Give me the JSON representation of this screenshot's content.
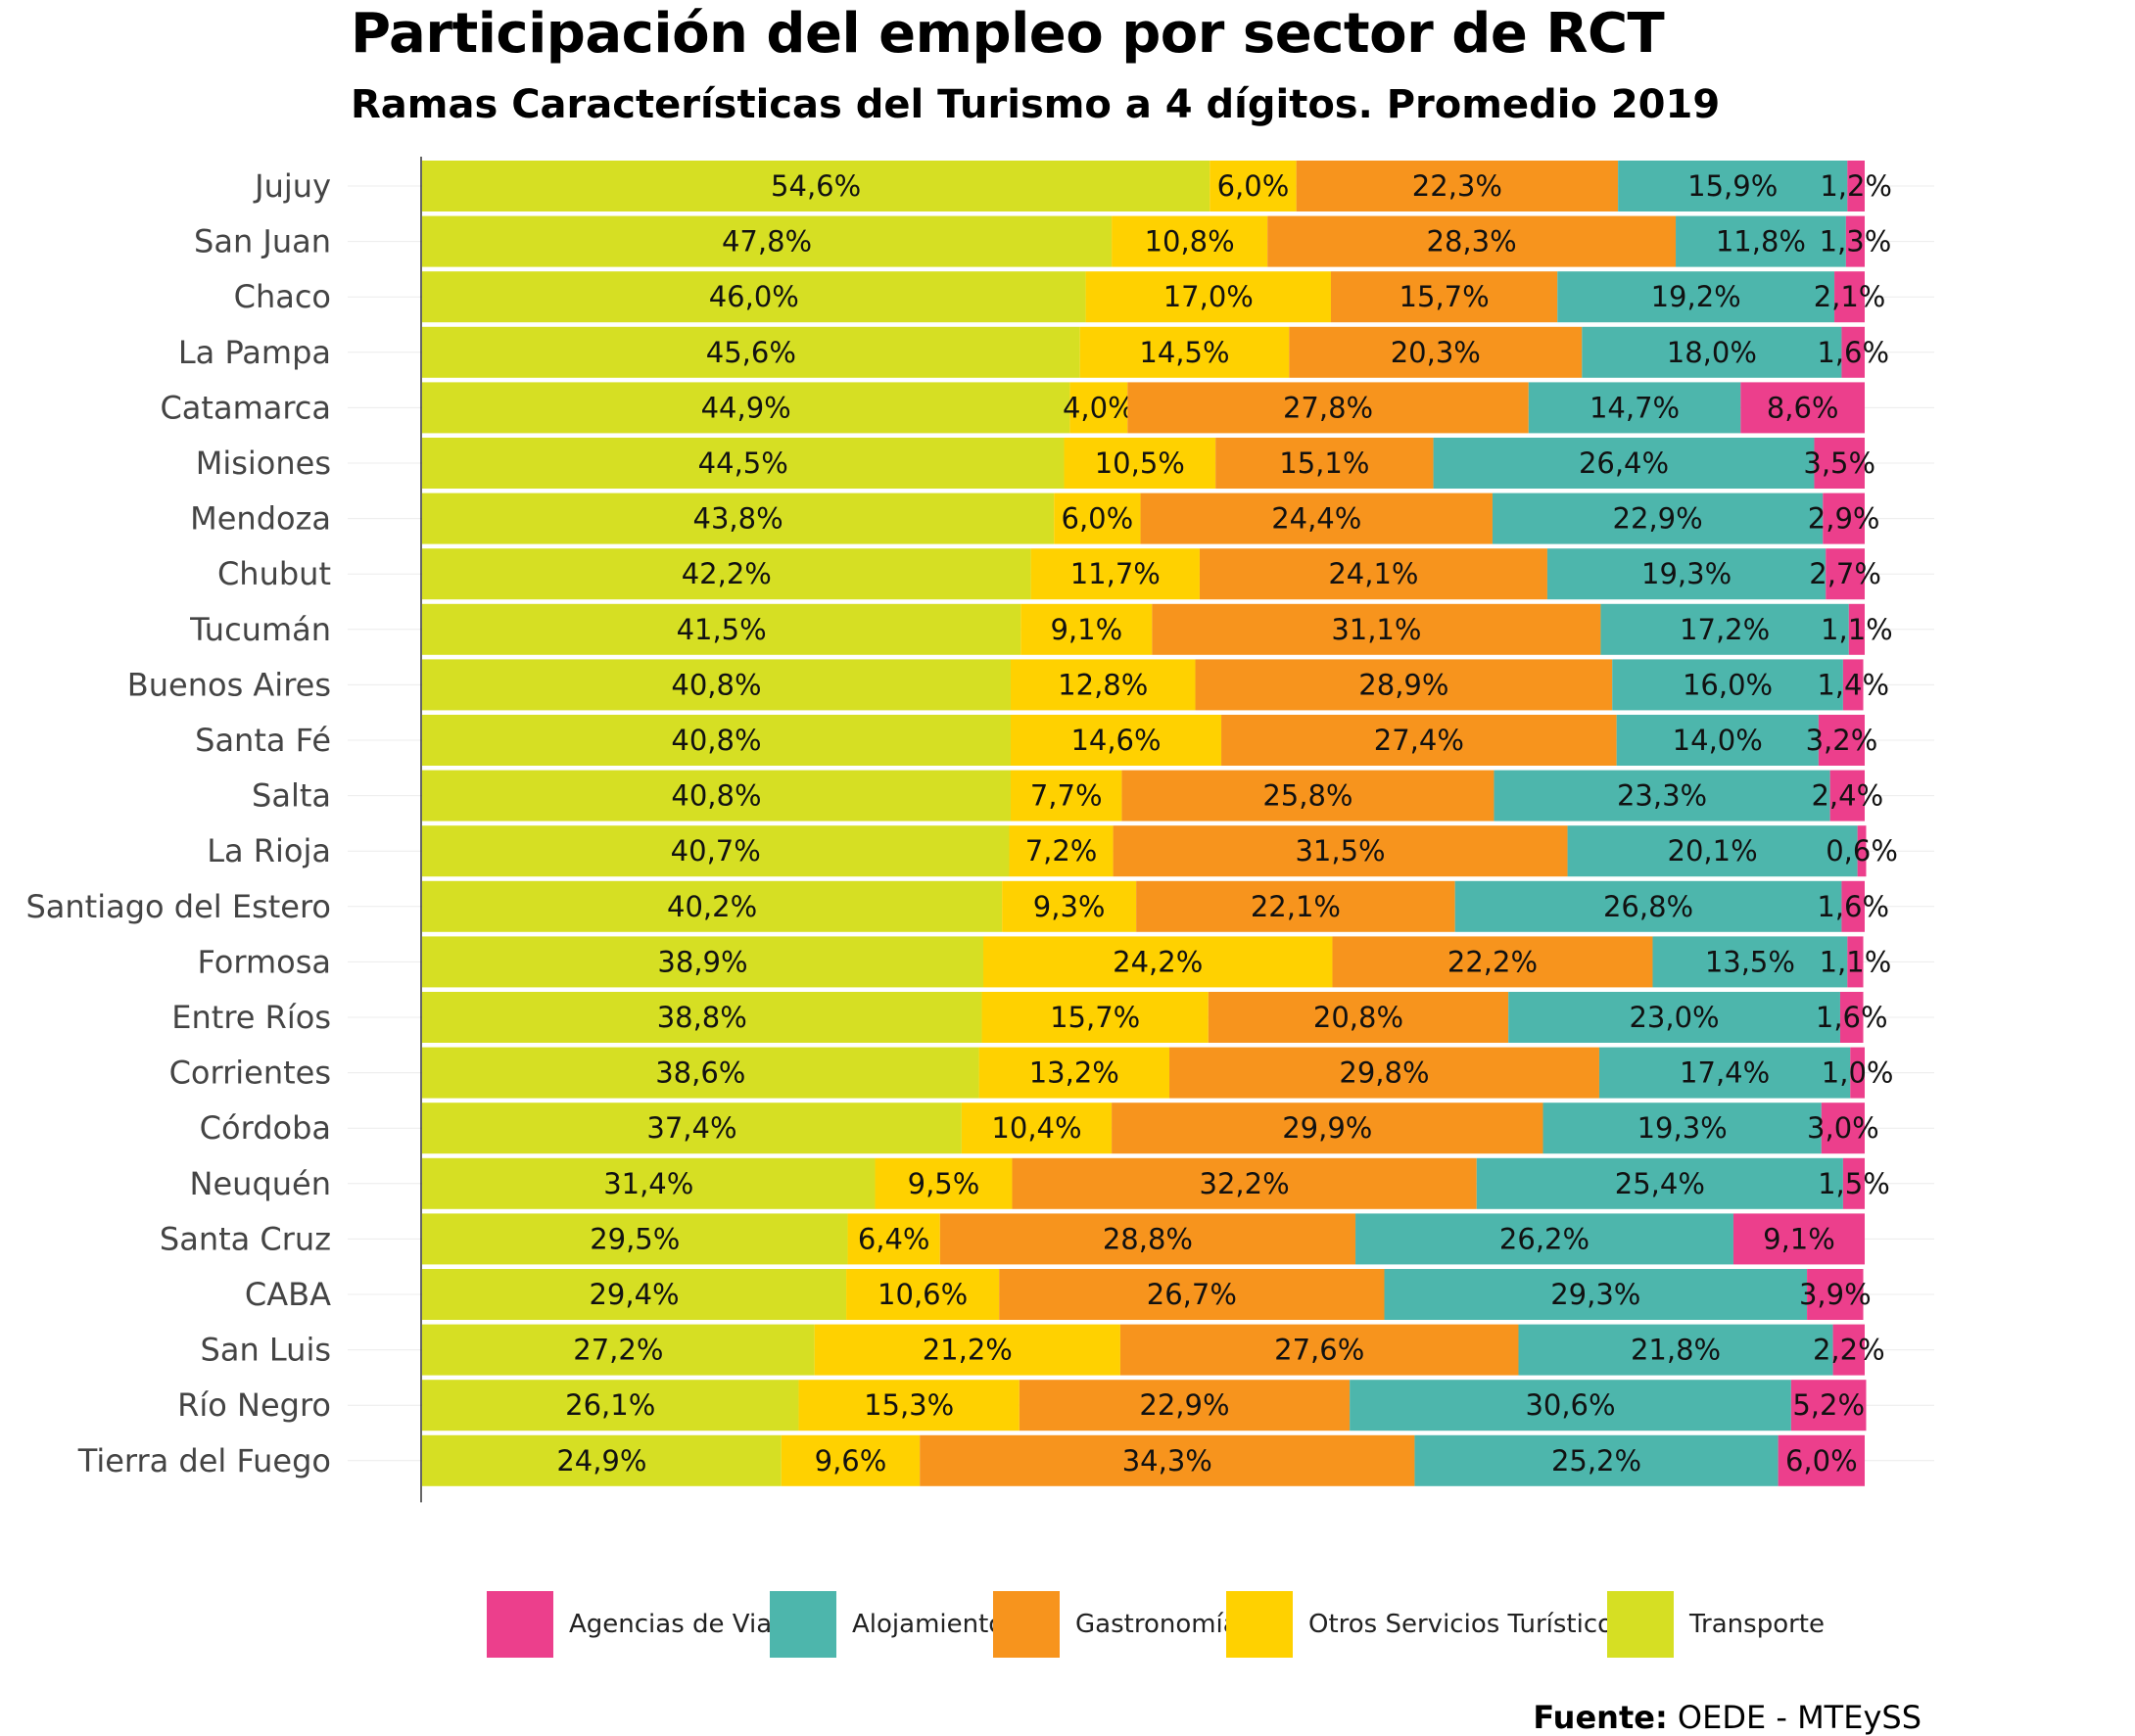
{
  "chart_data": {
    "type": "bar",
    "orientation": "horizontal-stacked-100",
    "title": "Participación del empleo por sector de RCT",
    "subtitle": "Ramas Características del Turismo a 4 dígitos. Promedio 2019",
    "categories": [
      "Jujuy",
      "San Juan",
      "Chaco",
      "La Pampa",
      "Catamarca",
      "Misiones",
      "Mendoza",
      "Chubut",
      "Tucumán",
      "Buenos Aires",
      "Santa Fé",
      "Salta",
      "La Rioja",
      "Santiago del Estero",
      "Formosa",
      "Entre Ríos",
      "Corrientes",
      "Córdoba",
      "Neuquén",
      "Santa Cruz",
      "CABA",
      "San Luis",
      "Río Negro",
      "Tierra del Fuego"
    ],
    "series": [
      {
        "name": "Transporte",
        "color": "#d6df23",
        "values": [
          54.6,
          47.8,
          46.0,
          45.6,
          44.9,
          44.5,
          43.8,
          42.2,
          41.5,
          40.8,
          40.8,
          40.8,
          40.7,
          40.2,
          38.9,
          38.8,
          38.6,
          37.4,
          31.4,
          29.5,
          29.4,
          27.2,
          26.1,
          24.9
        ]
      },
      {
        "name": "Otros Servicios Turísticos",
        "color": "#ffd100",
        "values": [
          6.0,
          10.8,
          17.0,
          14.5,
          4.0,
          10.5,
          6.0,
          11.7,
          9.1,
          12.8,
          14.6,
          7.7,
          7.2,
          9.3,
          24.2,
          15.7,
          13.2,
          10.4,
          9.5,
          6.4,
          10.6,
          21.2,
          15.3,
          9.6
        ]
      },
      {
        "name": "Gastronomía",
        "color": "#f7941d",
        "values": [
          22.3,
          28.3,
          15.7,
          20.3,
          27.8,
          15.1,
          24.4,
          24.1,
          31.1,
          28.9,
          27.4,
          25.8,
          31.5,
          22.1,
          22.2,
          20.8,
          29.8,
          29.9,
          32.2,
          28.8,
          26.7,
          27.6,
          22.9,
          34.3
        ]
      },
      {
        "name": "Alojamiento",
        "color": "#4db6ac",
        "values": [
          15.9,
          11.8,
          19.2,
          18.0,
          14.7,
          26.4,
          22.9,
          19.3,
          17.2,
          16.0,
          14.0,
          23.3,
          20.1,
          26.8,
          13.5,
          23.0,
          17.4,
          19.3,
          25.4,
          26.2,
          29.3,
          21.8,
          30.6,
          25.2
        ]
      },
      {
        "name": "Agencias de Viaje",
        "color": "#ec3f8c",
        "values": [
          1.2,
          1.3,
          2.1,
          1.6,
          8.6,
          3.5,
          2.9,
          2.7,
          1.1,
          1.4,
          3.2,
          2.4,
          0.6,
          1.6,
          1.1,
          1.6,
          1.0,
          3.0,
          1.5,
          9.1,
          3.9,
          2.2,
          5.2,
          6.0
        ]
      }
    ],
    "xlim": [
      0,
      100
    ],
    "legend_order": [
      "Agencias de Viaje",
      "Alojamiento",
      "Gastronomía",
      "Otros Servicios Turísticos",
      "Transporte"
    ],
    "legend_position": "bottom",
    "grid": true
  },
  "source": {
    "label": "Fuente:",
    "text": "OEDE - MTEySS"
  }
}
